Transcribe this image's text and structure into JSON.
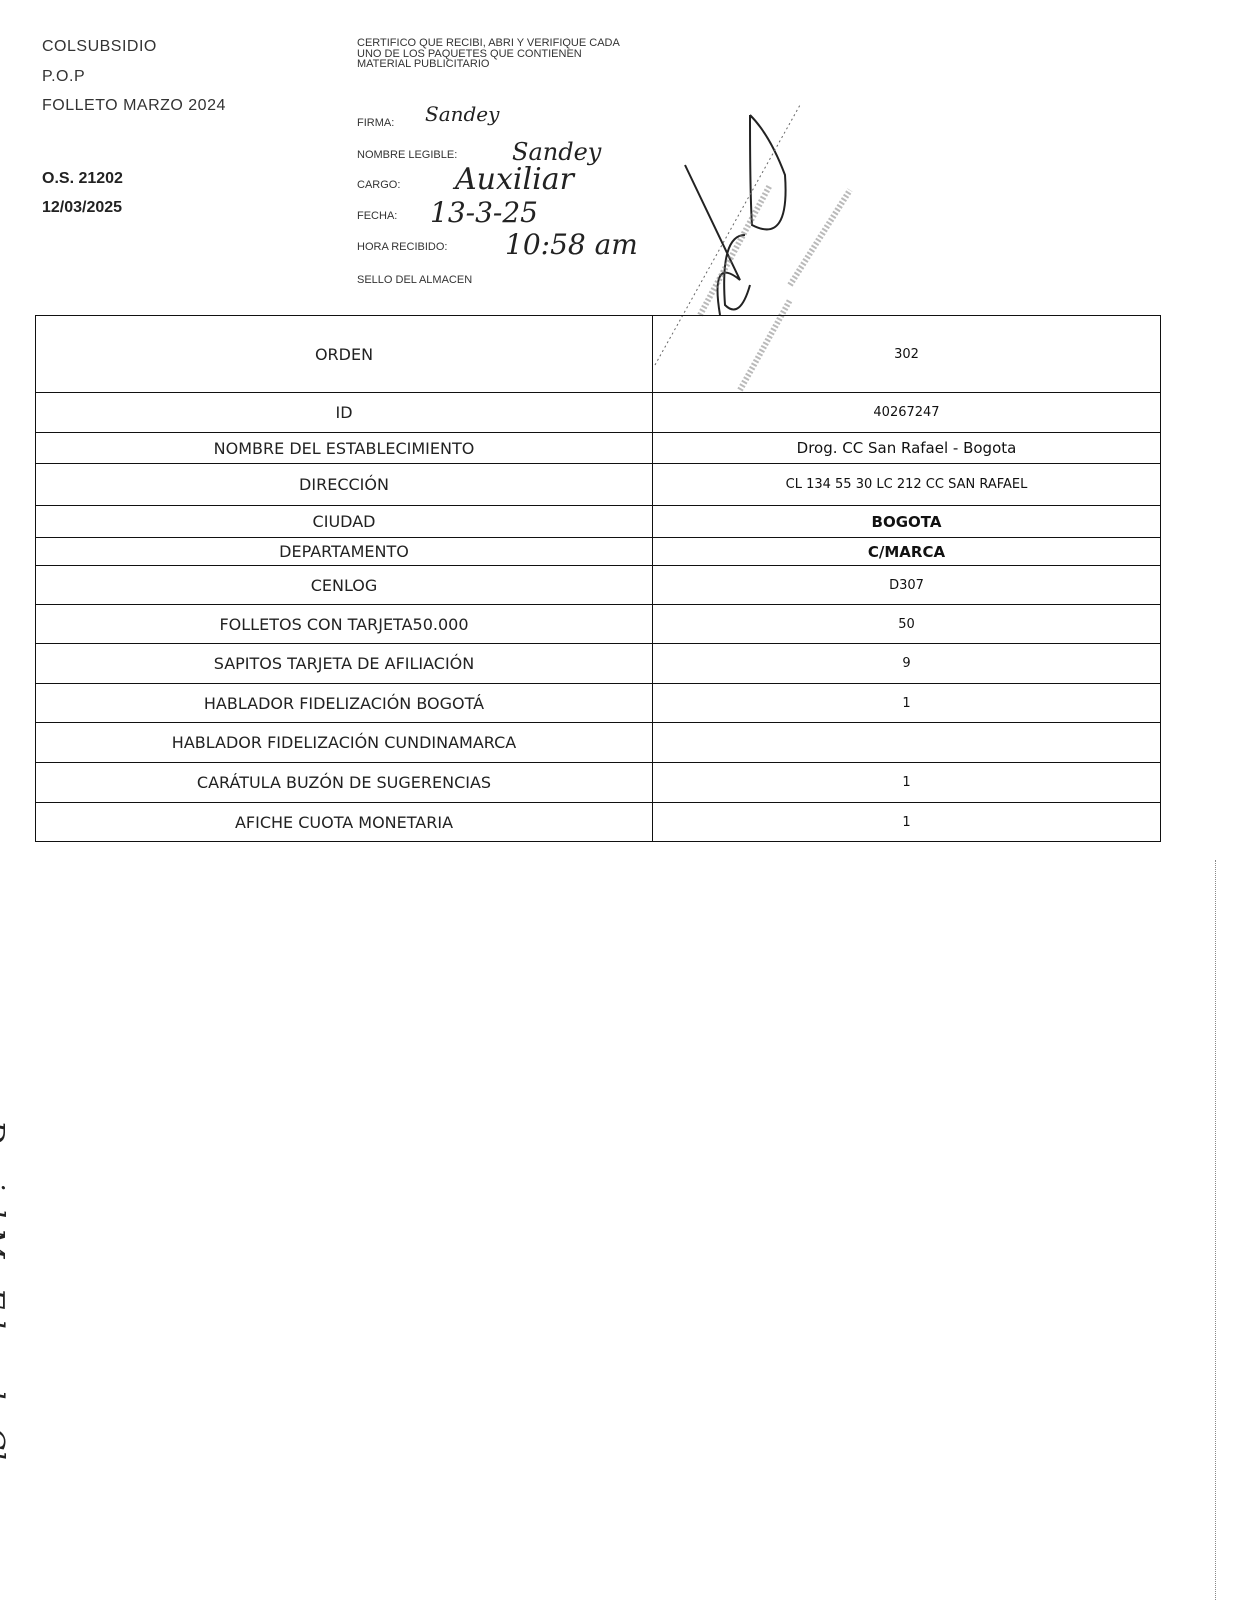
{
  "header": {
    "company": "COLSUBSIDIO",
    "line2": "P.O.P",
    "line3": "FOLLETO MARZO 2024",
    "os": "O.S. 21202",
    "date": "12/03/2025"
  },
  "certificate": {
    "text": "CERTIFICO QUE RECIBI, ABRI Y VERIFIQUE CADA UNO DE LOS PAQUETES QUE CONTIENEN MATERIAL PUBLICITARIO",
    "firma_label": "FIRMA:",
    "nombre_label": "NOMBRE LEGIBLE:",
    "cargo_label": "CARGO:",
    "fecha_label": "FECHA:",
    "hora_label": "HORA RECIBIDO:",
    "sello_label": "SELLO DEL ALMACEN",
    "firma_value": "Sandey",
    "nombre_value": "Sandey",
    "cargo_value": "Auxiliar",
    "fecha_value": "13-3-25",
    "hora_value": "10:58 am"
  },
  "table": {
    "rows": [
      {
        "label": "ORDEN",
        "value": "302"
      },
      {
        "label": "ID",
        "value": "40267247"
      },
      {
        "label": "NOMBRE DEL ESTABLECIMIENTO",
        "value": "Drog. CC San Rafael - Bogota"
      },
      {
        "label": "DIRECCIÓN",
        "value": "CL 134 55 30 LC 212 CC SAN RAFAEL"
      },
      {
        "label": "CIUDAD",
        "value": "BOGOTA"
      },
      {
        "label": "DEPARTAMENTO",
        "value": "C/MARCA"
      },
      {
        "label": "CENLOG",
        "value": "D307"
      },
      {
        "label": "FOLLETOS CON TARJETA50.000",
        "value": "50"
      },
      {
        "label": "SAPITOS TARJETA DE AFILIACIÓN",
        "value": "9"
      },
      {
        "label": "HABLADOR FIDELIZACIÓN BOGOTÁ",
        "value": "1"
      },
      {
        "label": "HABLADOR FIDELIZACIÓN CUNDINAMARCA",
        "value": ""
      },
      {
        "label": "CARÁTULA BUZÓN DE SUGERENCIAS",
        "value": "1"
      },
      {
        "label": "AFICHE CUOTA MONETARIA",
        "value": "1"
      }
    ]
  },
  "side_note": "Daniel M - Eduardo Chaves"
}
